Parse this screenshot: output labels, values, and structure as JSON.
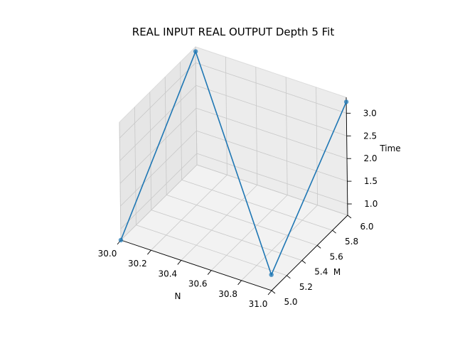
{
  "chart_data": {
    "type": "line",
    "projection": "3d",
    "title": "REAL INPUT REAL OUTPUT Depth 5 Fit",
    "xlabel": "N",
    "ylabel": "M",
    "zlabel": "Time",
    "grid": true,
    "markers": true,
    "color": "#1f77b4",
    "xlim": [
      30.0,
      31.0
    ],
    "ylim": [
      5.0,
      6.0
    ],
    "zlim": [
      0.75,
      3.35
    ],
    "xticks": [
      "30.0",
      "30.2",
      "30.4",
      "30.6",
      "30.8",
      "31.0"
    ],
    "yticks": [
      "5.0",
      "5.2",
      "5.4",
      "5.6",
      "5.8",
      "6.0"
    ],
    "zticks": [
      "1.0",
      "1.5",
      "2.0",
      "2.5",
      "3.0"
    ],
    "series": [
      {
        "x": [
          30.0,
          30.0,
          31.0,
          31.0
        ],
        "y": [
          5.0,
          6.0,
          5.0,
          6.0
        ],
        "z": [
          0.75,
          3.25,
          1.1,
          3.25
        ]
      }
    ]
  }
}
